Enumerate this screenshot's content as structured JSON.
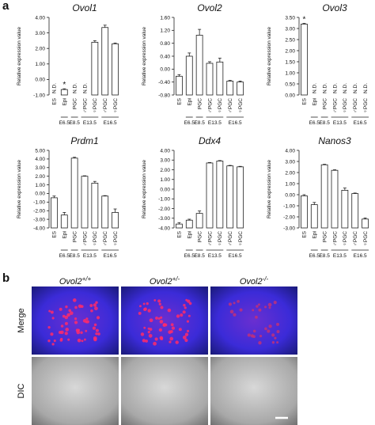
{
  "panel_labels": [
    "a",
    "b"
  ],
  "chart_data": [
    {
      "type": "bar",
      "title": "Ovol1",
      "y_label": "Relative expression value",
      "categories": [
        "ES",
        "Epi",
        "PGC",
        "♂PGC",
        "♀PGC",
        "♂PGC",
        "♀PGC"
      ],
      "values": [
        null,
        -0.65,
        null,
        null,
        2.4,
        3.35,
        2.3
      ],
      "errors": [
        null,
        0.05,
        null,
        null,
        0.1,
        0.15,
        0.05
      ],
      "annotations": [
        "N.D.",
        "*",
        "N.D.",
        "N.D.",
        null,
        null,
        null
      ],
      "groups": [
        {
          "label": "E6.5",
          "categories": [
            1
          ]
        },
        {
          "label": "E8.5",
          "categories": [
            2
          ]
        },
        {
          "label": "E13.5",
          "categories": [
            3,
            4
          ]
        },
        {
          "label": "E16.5",
          "categories": [
            5,
            6
          ]
        }
      ],
      "ylim": [
        -1,
        4
      ],
      "yticks": [
        {
          "value": -1,
          "label": "-1.00"
        },
        {
          "value": 0,
          "label": "0.00"
        },
        {
          "value": 1,
          "label": "1.00"
        },
        {
          "value": 2,
          "label": "2.00"
        },
        {
          "value": 3,
          "label": "3.00"
        },
        {
          "value": 4,
          "label": "4.00"
        }
      ],
      "color": "#ffffff"
    },
    {
      "type": "bar",
      "title": "Ovol2",
      "y_label": "Relative expression value",
      "categories": [
        "ES",
        "Epi",
        "PGC",
        "♂PGC",
        "♀PGC",
        "♂PGC",
        "♀PGC"
      ],
      "values": [
        -0.22,
        0.4,
        1.05,
        0.18,
        0.22,
        -0.37,
        -0.4
      ],
      "errors": [
        0.05,
        0.1,
        0.18,
        0.05,
        0.12,
        0.02,
        0.03
      ],
      "annotations": [
        null,
        null,
        null,
        null,
        null,
        null,
        null
      ],
      "groups": [
        {
          "label": "E6.5",
          "categories": [
            1
          ]
        },
        {
          "label": "E8.5",
          "categories": [
            2
          ]
        },
        {
          "label": "E13.5",
          "categories": [
            3,
            4
          ]
        },
        {
          "label": "E16.5",
          "categories": [
            5,
            6
          ]
        }
      ],
      "ylim": [
        -0.8,
        1.6
      ],
      "yticks": [
        {
          "value": -0.8,
          "label": "-0.80"
        },
        {
          "value": -0.4,
          "label": "-0.40"
        },
        {
          "value": 0,
          "label": "0.00"
        },
        {
          "value": 0.4,
          "label": "0.40"
        },
        {
          "value": 0.8,
          "label": "0.80"
        },
        {
          "value": 1.2,
          "label": "1.20"
        },
        {
          "value": 1.6,
          "label": "1.60"
        }
      ],
      "color": "#ffffff"
    },
    {
      "type": "bar",
      "title": "Ovol3",
      "y_label": "Relative expression value",
      "categories": [
        "ES",
        "Epi",
        "PGC",
        "♂PGC",
        "♀PGC",
        "♂PGC",
        "♀PGC"
      ],
      "values": [
        3.2,
        null,
        null,
        null,
        null,
        null,
        null
      ],
      "errors": [
        0.03,
        null,
        null,
        null,
        null,
        null,
        null
      ],
      "annotations": [
        "*",
        "N.D.",
        "N.D.",
        "N.D.",
        "N.D.",
        "N.D.",
        "N.D."
      ],
      "groups": [
        {
          "label": "E6.5",
          "categories": [
            1
          ]
        },
        {
          "label": "E8.5",
          "categories": [
            2
          ]
        },
        {
          "label": "E13.5",
          "categories": [
            3,
            4
          ]
        },
        {
          "label": "E16.5",
          "categories": [
            5,
            6
          ]
        }
      ],
      "ylim": [
        0,
        3.5
      ],
      "yticks": [
        {
          "value": 0,
          "label": "0.00"
        },
        {
          "value": 0.5,
          "label": "0.50"
        },
        {
          "value": 1,
          "label": "1.00"
        },
        {
          "value": 1.5,
          "label": "1.50"
        },
        {
          "value": 2,
          "label": "2.00"
        },
        {
          "value": 2.5,
          "label": "2.50"
        },
        {
          "value": 3,
          "label": "3.00"
        },
        {
          "value": 3.5,
          "label": "3.50"
        }
      ],
      "color": "#ffffff"
    },
    {
      "type": "bar",
      "title": "Prdm1",
      "y_label": "Relative expression value",
      "categories": [
        "ES",
        "Epi",
        "PGC",
        "♂PGC",
        "♀PGC",
        "♂PGC",
        "♀PGC"
      ],
      "values": [
        -0.5,
        -2.5,
        4.1,
        2.0,
        1.2,
        -0.3,
        -2.2
      ],
      "errors": [
        0.2,
        0.3,
        0.1,
        0.05,
        0.2,
        0.05,
        0.4
      ],
      "annotations": [
        null,
        null,
        null,
        null,
        null,
        null,
        null
      ],
      "groups": [
        {
          "label": "E6.5",
          "categories": [
            1
          ]
        },
        {
          "label": "E8.5",
          "categories": [
            2
          ]
        },
        {
          "label": "E13.5",
          "categories": [
            3,
            4
          ]
        },
        {
          "label": "E16.5",
          "categories": [
            5,
            6
          ]
        }
      ],
      "ylim": [
        -4,
        5
      ],
      "yticks": [
        {
          "value": -4,
          "label": "-4.00"
        },
        {
          "value": -3,
          "label": "-3.00"
        },
        {
          "value": -2,
          "label": "-2.00"
        },
        {
          "value": -1,
          "label": "-1.00"
        },
        {
          "value": 0,
          "label": "0.00"
        },
        {
          "value": 1,
          "label": "1.00"
        },
        {
          "value": 2,
          "label": "2.00"
        },
        {
          "value": 3,
          "label": "3.00"
        },
        {
          "value": 4,
          "label": "4.00"
        },
        {
          "value": 5,
          "label": "5.00"
        }
      ],
      "color": "#ffffff"
    },
    {
      "type": "bar",
      "title": "Ddx4",
      "y_label": "Relative expression value",
      "categories": [
        "ES",
        "Epi",
        "PGC",
        "♂PGC",
        "♀PGC",
        "♂PGC",
        "♀PGC"
      ],
      "values": [
        -3.6,
        -3.2,
        -2.5,
        2.7,
        2.9,
        2.4,
        2.3
      ],
      "errors": [
        0.15,
        0.1,
        0.25,
        0.05,
        0.05,
        0.05,
        0.05
      ],
      "annotations": [
        null,
        null,
        null,
        null,
        null,
        null,
        null
      ],
      "groups": [
        {
          "label": "E6.5",
          "categories": [
            1
          ]
        },
        {
          "label": "E8.5",
          "categories": [
            2
          ]
        },
        {
          "label": "E13.5",
          "categories": [
            3,
            4
          ]
        },
        {
          "label": "E16.5",
          "categories": [
            5,
            6
          ]
        }
      ],
      "ylim": [
        -4,
        4
      ],
      "yticks": [
        {
          "value": -4,
          "label": "-4.00"
        },
        {
          "value": -3,
          "label": "-3.00"
        },
        {
          "value": -2,
          "label": "-2.00"
        },
        {
          "value": -1,
          "label": "-1.00"
        },
        {
          "value": 0,
          "label": "0.00"
        },
        {
          "value": 1,
          "label": "1.00"
        },
        {
          "value": 2,
          "label": "2.00"
        },
        {
          "value": 3,
          "label": "3.00"
        },
        {
          "value": 4,
          "label": "4.00"
        }
      ],
      "color": "#ffffff"
    },
    {
      "type": "bar",
      "title": "Nanos3",
      "y_label": "Relative expression value",
      "categories": [
        "ES",
        "Epi",
        "PGC",
        "♂PGC",
        "♀PGC",
        "♂PGC",
        "♀PGC"
      ],
      "values": [
        -0.1,
        -0.9,
        2.7,
        2.2,
        0.4,
        0.1,
        -2.2
      ],
      "errors": [
        0.1,
        0.2,
        0.05,
        0.05,
        0.2,
        0.05,
        0.1
      ],
      "annotations": [
        null,
        null,
        null,
        null,
        null,
        null,
        null
      ],
      "groups": [
        {
          "label": "E6.5",
          "categories": [
            1
          ]
        },
        {
          "label": "E8.5",
          "categories": [
            2
          ]
        },
        {
          "label": "E13.5",
          "categories": [
            3,
            4
          ]
        },
        {
          "label": "E16.5",
          "categories": [
            5,
            6
          ]
        }
      ],
      "ylim": [
        -3,
        4
      ],
      "yticks": [
        {
          "value": -3,
          "label": "-3.00"
        },
        {
          "value": -2,
          "label": "-2.00"
        },
        {
          "value": -1,
          "label": "-1.00"
        },
        {
          "value": 0,
          "label": "0.00"
        },
        {
          "value": 1,
          "label": "1.00"
        },
        {
          "value": 2,
          "label": "2.00"
        },
        {
          "value": 3,
          "label": "3.00"
        },
        {
          "value": 4,
          "label": "4.00"
        }
      ],
      "color": "#ffffff"
    }
  ],
  "images": {
    "columns": [
      {
        "gene": "Ovol2",
        "genotype": "+/+"
      },
      {
        "gene": "Ovol2",
        "genotype": "+/-"
      },
      {
        "gene": "Ovol2",
        "genotype": "-/-"
      }
    ],
    "rows": [
      "Merge",
      "DIC"
    ]
  }
}
